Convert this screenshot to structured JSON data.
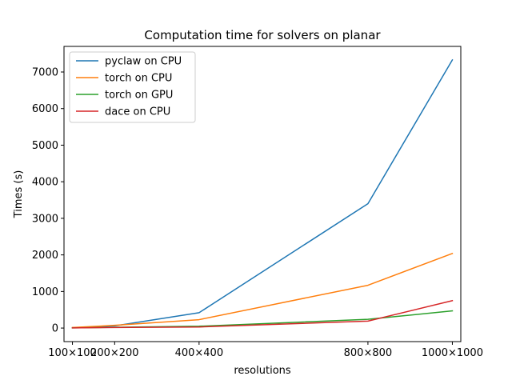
{
  "chart_data": {
    "type": "line",
    "title": "Computation time for solvers on planar",
    "xlabel": "resolutions",
    "ylabel": "Times (s)",
    "categories": [
      "100×100",
      "200×200",
      "400×400",
      "800×800",
      "1000×1000"
    ],
    "x_positions": [
      100,
      200,
      400,
      800,
      1000
    ],
    "xlim": [
      80,
      1020
    ],
    "ylim": [
      -370,
      7700
    ],
    "yticks": [
      0,
      1000,
      2000,
      3000,
      4000,
      5000,
      6000,
      7000
    ],
    "grid": false,
    "legend_position": "top-left",
    "series": [
      {
        "name": "pyclaw on CPU",
        "color": "#1f77b4",
        "values": [
          10,
          60,
          420,
          3400,
          7330
        ]
      },
      {
        "name": "torch on CPU",
        "color": "#ff7f0e",
        "values": [
          15,
          75,
          230,
          1170,
          2040
        ]
      },
      {
        "name": "torch on GPU",
        "color": "#2ca02c",
        "values": [
          5,
          20,
          50,
          240,
          470
        ]
      },
      {
        "name": "dace on CPU",
        "color": "#d62728",
        "values": [
          5,
          15,
          30,
          190,
          750
        ]
      }
    ]
  }
}
